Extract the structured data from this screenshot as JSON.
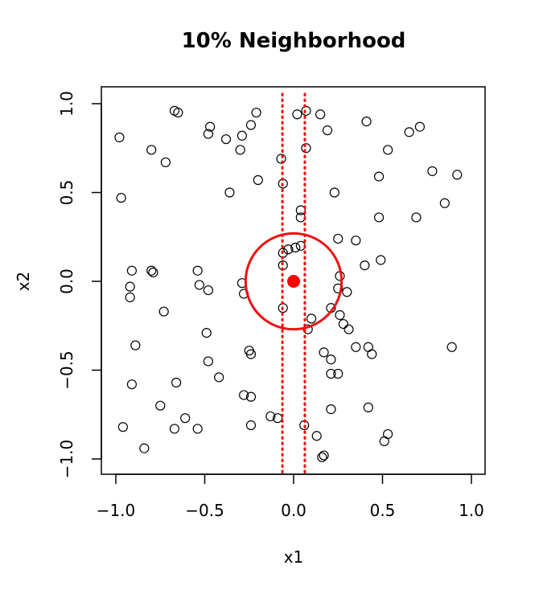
{
  "chart_data": {
    "type": "scatter",
    "title": "10% Neighborhood",
    "xlabel": "x1",
    "ylabel": "x2",
    "xlim": [
      -1.0,
      1.0
    ],
    "ylim": [
      -1.0,
      1.0
    ],
    "xticks": [
      -1.0,
      -0.5,
      0.0,
      0.5,
      1.0
    ],
    "yticks": [
      -1.0,
      -0.5,
      0.0,
      0.5,
      1.0
    ],
    "xtick_labels": [
      "−1.0",
      "−0.5",
      "0.0",
      "0.5",
      "1.0"
    ],
    "ytick_labels": [
      "−1.0",
      "−0.5",
      "0.0",
      "0.5",
      "1.0"
    ],
    "grid": false,
    "legend": "none",
    "points": {
      "x": [
        -0.98,
        -0.97,
        -0.67,
        -0.65,
        -0.47,
        -0.48,
        -0.38,
        -0.29,
        -0.24,
        -0.21,
        0.02,
        0.07,
        0.15,
        0.19,
        0.41,
        0.65,
        0.71,
        -0.8,
        -0.72,
        -0.3,
        0.53,
        -0.07,
        0.07,
        -0.2,
        -0.06,
        0.48,
        0.78,
        0.92,
        -0.36,
        0.23,
        0.85,
        0.04,
        0.04,
        0.48,
        0.69,
        0.25,
        0.35,
        -0.03,
        0.01,
        0.04,
        0.49,
        -0.06,
        -0.06,
        0.4,
        -0.91,
        -0.8,
        -0.79,
        -0.54,
        -0.29,
        -0.92,
        -0.53,
        -0.48,
        -0.28,
        0.26,
        0.25,
        0.3,
        -0.92,
        -0.73,
        -0.06,
        0.21,
        0.26,
        0.28,
        0.1,
        0.31,
        0.08,
        -0.49,
        0.35,
        0.42,
        0.44,
        -0.89,
        0.89,
        -0.25,
        -0.24,
        0.17,
        -0.48,
        0.21,
        0.21,
        0.25,
        -0.42,
        -0.91,
        -0.66,
        -0.28,
        -0.24,
        -0.75,
        0.42,
        -0.61,
        -0.13,
        0.21,
        -0.09,
        -0.96,
        -0.24,
        0.06,
        -0.67,
        -0.54,
        0.53,
        0.51,
        0.13,
        -0.84,
        0.16,
        0.17
      ],
      "y": [
        0.81,
        0.47,
        0.96,
        0.95,
        0.87,
        0.83,
        0.8,
        0.82,
        0.88,
        0.95,
        0.94,
        0.96,
        0.94,
        0.85,
        0.9,
        0.84,
        0.87,
        0.74,
        0.67,
        0.74,
        0.74,
        0.69,
        0.75,
        0.57,
        0.55,
        0.59,
        0.62,
        0.6,
        0.5,
        0.5,
        0.44,
        0.4,
        0.36,
        0.36,
        0.36,
        0.24,
        0.23,
        0.18,
        0.19,
        0.2,
        0.12,
        0.16,
        0.09,
        0.09,
        0.06,
        0.06,
        0.05,
        0.06,
        -0.01,
        -0.03,
        -0.02,
        -0.05,
        -0.07,
        0.03,
        -0.04,
        -0.06,
        -0.09,
        -0.17,
        -0.15,
        -0.15,
        -0.19,
        -0.24,
        -0.21,
        -0.27,
        -0.27,
        -0.29,
        -0.37,
        -0.37,
        -0.41,
        -0.36,
        -0.37,
        -0.39,
        -0.41,
        -0.4,
        -0.45,
        -0.44,
        -0.52,
        -0.52,
        -0.54,
        -0.58,
        -0.57,
        -0.64,
        -0.65,
        -0.7,
        -0.71,
        -0.77,
        -0.76,
        -0.72,
        -0.77,
        -0.82,
        -0.81,
        -0.81,
        -0.83,
        -0.83,
        -0.86,
        -0.9,
        -0.87,
        -0.94,
        -0.99,
        -0.98
      ]
    },
    "target_point": {
      "x": 0.0,
      "y": 0.0
    },
    "neighborhood_circle": {
      "center": [
        0.0,
        0.0
      ],
      "radius": 0.27
    },
    "neighborhood_lines_x": [
      -0.063,
      0.063
    ],
    "colors": {
      "points": "#000000",
      "neighborhood": "#ff0000",
      "circle": "#ee1111"
    }
  }
}
